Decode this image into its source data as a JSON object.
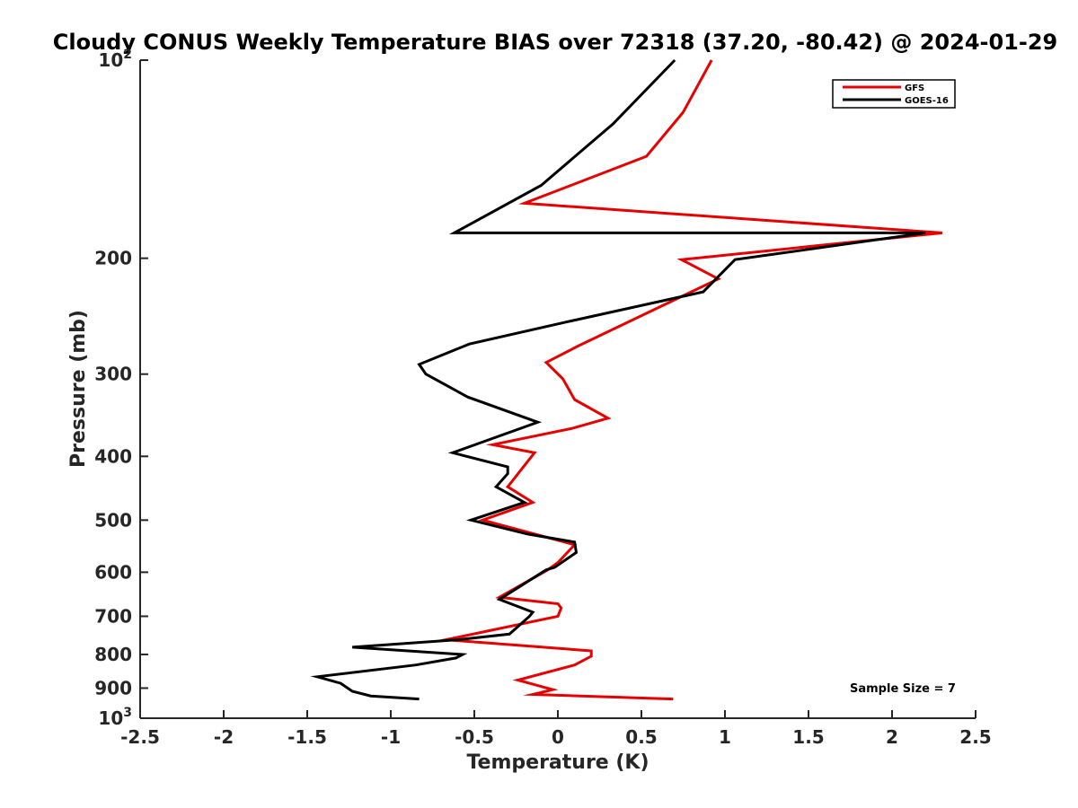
{
  "chart_data": {
    "type": "line",
    "title": "Cloudy CONUS Weekly Temperature BIAS over 72318 (37.20, -80.42) @ 2024-01-29",
    "xlabel": "Temperature (K)",
    "ylabel": "Pressure (mb)",
    "xlim": [
      -2.5,
      2.5
    ],
    "ylim": [
      1000,
      100
    ],
    "yscale": "log",
    "y_inverted": true,
    "grid": false,
    "legend_position": "top-right",
    "x_ticks": [
      "-2.5",
      "-2",
      "-1.5",
      "-1",
      "-0.5",
      "0",
      "0.5",
      "1",
      "1.5",
      "2",
      "2.5"
    ],
    "y_ticks": [
      {
        "value": 100,
        "base": "10",
        "exp": "2"
      },
      {
        "value": 200,
        "label": "200"
      },
      {
        "value": 300,
        "label": "300"
      },
      {
        "value": 400,
        "label": "400"
      },
      {
        "value": 500,
        "label": "500"
      },
      {
        "value": 600,
        "label": "600"
      },
      {
        "value": 700,
        "label": "700"
      },
      {
        "value": 800,
        "label": "800"
      },
      {
        "value": 900,
        "label": "900"
      },
      {
        "value": 1000,
        "base": "10",
        "exp": "3"
      }
    ],
    "series": [
      {
        "name": "GFS",
        "color": "#e60000",
        "points": [
          [
            0.92,
            100
          ],
          [
            0.75,
            120
          ],
          [
            0.53,
            140
          ],
          [
            -0.2,
            165
          ],
          [
            2.3,
            183
          ],
          [
            0.74,
            201
          ],
          [
            0.96,
            215
          ],
          [
            0.75,
            228
          ],
          [
            0.12,
            272
          ],
          [
            -0.07,
            288
          ],
          [
            0.03,
            305
          ],
          [
            0.1,
            328
          ],
          [
            0.3,
            350
          ],
          [
            0.08,
            363
          ],
          [
            -0.39,
            384
          ],
          [
            -0.14,
            395
          ],
          [
            -0.3,
            445
          ],
          [
            -0.15,
            470
          ],
          [
            -0.45,
            500
          ],
          [
            0.1,
            545
          ],
          [
            0.0,
            580
          ],
          [
            -0.06,
            595
          ],
          [
            -0.35,
            655
          ],
          [
            0.0,
            670
          ],
          [
            0.02,
            680
          ],
          [
            0.0,
            700
          ],
          [
            -0.67,
            760
          ],
          [
            0.2,
            790
          ],
          [
            0.2,
            805
          ],
          [
            0.1,
            830
          ],
          [
            -0.24,
            875
          ],
          [
            -0.03,
            905
          ],
          [
            -0.15,
            920
          ],
          [
            0.69,
            935
          ]
        ]
      },
      {
        "name": "GOES-16",
        "color": "#000000",
        "points": [
          [
            0.7,
            100
          ],
          [
            0.33,
            125
          ],
          [
            -0.1,
            155
          ],
          [
            -0.62,
            183
          ],
          [
            2.2,
            183
          ],
          [
            1.06,
            201
          ],
          [
            0.87,
            225
          ],
          [
            0.05,
            250
          ],
          [
            -0.53,
            270
          ],
          [
            -0.83,
            290
          ],
          [
            -0.79,
            300
          ],
          [
            -0.54,
            325
          ],
          [
            -0.12,
            355
          ],
          [
            -0.63,
            395
          ],
          [
            -0.3,
            415
          ],
          [
            -0.3,
            425
          ],
          [
            -0.37,
            445
          ],
          [
            -0.2,
            470
          ],
          [
            -0.52,
            500
          ],
          [
            -0.18,
            525
          ],
          [
            0.1,
            540
          ],
          [
            0.11,
            560
          ],
          [
            -0.02,
            590
          ],
          [
            -0.07,
            595
          ],
          [
            -0.35,
            660
          ],
          [
            -0.15,
            690
          ],
          [
            -0.17,
            700
          ],
          [
            -0.29,
            745
          ],
          [
            -0.6,
            760
          ],
          [
            -1.23,
            780
          ],
          [
            -0.57,
            800
          ],
          [
            -0.61,
            810
          ],
          [
            -0.85,
            830
          ],
          [
            -1.44,
            865
          ],
          [
            -1.3,
            885
          ],
          [
            -1.23,
            910
          ],
          [
            -1.12,
            925
          ],
          [
            -0.83,
            935
          ]
        ]
      }
    ],
    "annotations": [
      "Sample Size = 7"
    ]
  }
}
